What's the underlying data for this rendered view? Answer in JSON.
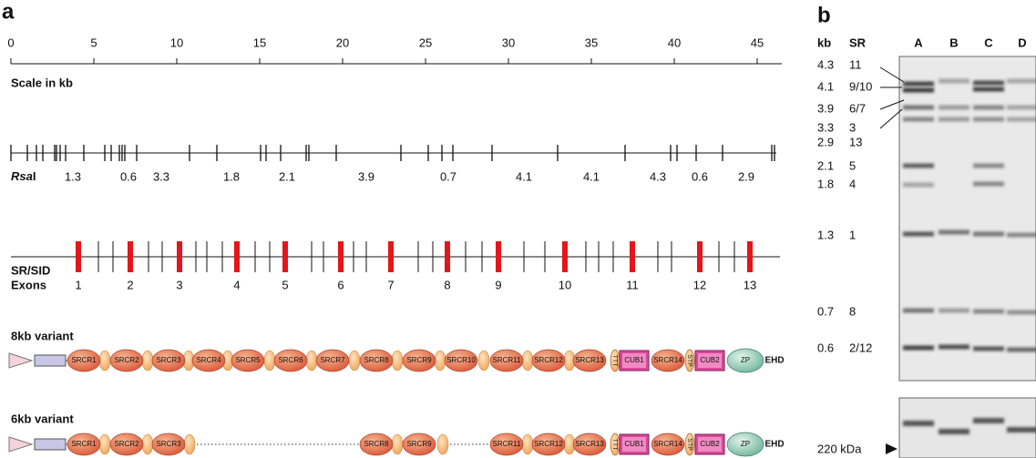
{
  "panel_a": {
    "label": "a",
    "scale": {
      "ticks": [
        "0",
        "5",
        "10",
        "15",
        "20",
        "25",
        "30",
        "35",
        "40",
        "45"
      ],
      "caption": "Scale in kb"
    },
    "rsai": {
      "label_italic": "Rsa",
      "label_roman": "I",
      "fragments": [
        "1.3",
        "0.6",
        "3.3",
        "1.8",
        "2.1",
        "3.9",
        "0.7",
        "4.1",
        "4.1",
        "4.3",
        "0.6",
        "2.9"
      ]
    },
    "exons": {
      "label_1": "SR/SID",
      "label_2": "Exons",
      "numbers": [
        "1",
        "2",
        "3",
        "4",
        "5",
        "6",
        "7",
        "8",
        "9",
        "10",
        "11",
        "12",
        "13"
      ]
    },
    "variants": [
      {
        "title": "8kb variant",
        "domains": [
          "SRCR1",
          "SRCR2",
          "SRCR3",
          "SRCR4",
          "SRCR5",
          "SRCR6",
          "SRCR7",
          "SRCR8",
          "SRCR9",
          "SRCR10",
          "SRCR11",
          "SRCR12",
          "SRCR13",
          "TTT",
          "CUB1",
          "SRCR14",
          "STP",
          "CUB2",
          "ZP",
          "EHD"
        ]
      },
      {
        "title": "6kb variant",
        "domains": [
          "SRCR1",
          "SRCR2",
          "SRCR3",
          "SRCR8",
          "SRCR9",
          "SRCR11",
          "SRCR12",
          "SRCR13",
          "TTT",
          "CUB1",
          "SRCR14",
          "STP",
          "CUB2",
          "ZP",
          "EHD"
        ]
      }
    ]
  },
  "panel_b": {
    "label": "b",
    "header": {
      "kb": "kb",
      "sr": "SR"
    },
    "lanes": [
      "A",
      "B",
      "C",
      "D"
    ],
    "rows": [
      {
        "kb": "4.3",
        "sr": "11"
      },
      {
        "kb": "4.1",
        "sr": "9/10"
      },
      {
        "kb": "3.9",
        "sr": "6/7"
      },
      {
        "kb": "3.3",
        "sr": "3"
      },
      {
        "kb": "2.9",
        "sr": "13"
      },
      {
        "kb": "2.1",
        "sr": "5"
      },
      {
        "kb": "1.8",
        "sr": "4"
      },
      {
        "kb": "1.3",
        "sr": "1"
      },
      {
        "kb": "0.7",
        "sr": "8"
      },
      {
        "kb": "0.6",
        "sr": "2/12"
      }
    ],
    "marker": "220 kDa"
  }
}
